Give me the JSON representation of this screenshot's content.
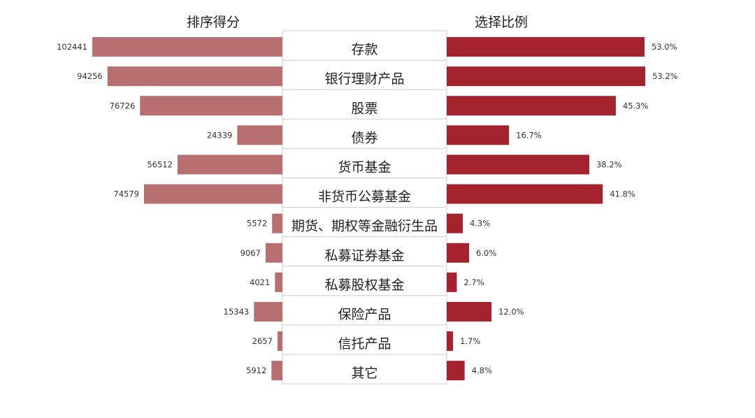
{
  "chart_data": {
    "type": "bar",
    "layout": "butterfly",
    "left_header": "排序得分",
    "right_header": "选择比例",
    "categories": [
      "存款",
      "银行理财产品",
      "股票",
      "债券",
      "货币基金",
      "非货币公募基金",
      "期货、期权等金融衍生品",
      "私募证券基金",
      "私募股权基金",
      "保险产品",
      "信托产品",
      "其它"
    ],
    "series": [
      {
        "name": "排序得分",
        "values": [
          102441,
          94256,
          76726,
          24339,
          56512,
          74579,
          5572,
          9067,
          4021,
          15343,
          2657,
          5912
        ],
        "labels": [
          "102441",
          "94256",
          "76726",
          "24339",
          "56512",
          "74579",
          "5572",
          "9067",
          "4021",
          "15343",
          "2657",
          "5912"
        ]
      },
      {
        "name": "选择比例",
        "values": [
          53.0,
          53.2,
          45.3,
          16.7,
          38.2,
          41.8,
          4.3,
          6.0,
          2.7,
          12.0,
          1.7,
          4.8
        ],
        "labels": [
          "53.0%",
          "53.2%",
          "45.3%",
          "16.7%",
          "38.2%",
          "41.8%",
          "4.3%",
          "6.0%",
          "2.7%",
          "12.0%",
          "1.7%",
          "4.8%"
        ]
      }
    ],
    "colors": {
      "left": "#b76f6f",
      "right": "#a4232f",
      "divider": "#cccccc"
    },
    "grid": false
  }
}
